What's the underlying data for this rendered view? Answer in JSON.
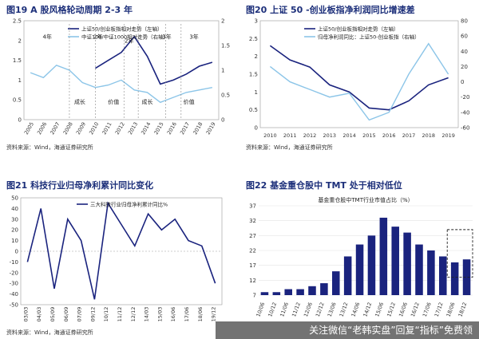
{
  "panels": {
    "p1": {
      "title": "图19 A 股风格轮动周期 2-3 年",
      "source": "资料来源：Wind，海通证券研究所"
    },
    "p2": {
      "title": "图20 上证 50 -创业板指净利润同比增速差",
      "source": "资料来源：Wind，海通证券研究所"
    },
    "p3": {
      "title": "图21 科技行业归母净利累计同比变化",
      "source": "资料来源：Wind，海通证券研究所"
    },
    "p4": {
      "title": "图22 基金重仓股中 TMT 处于相对低位",
      "source": ""
    }
  },
  "watermark": "关注微信“老韩实盘”回复“指标”免费领",
  "chart_data": [
    {
      "type": "line",
      "x": [
        "2005",
        "2006",
        "2007",
        "2008",
        "2009",
        "2010",
        "2011",
        "2012",
        "2013",
        "2014",
        "2015",
        "2016",
        "2017",
        "2018",
        "2019"
      ],
      "ylim_left": [
        0,
        2.5
      ],
      "ylim_right": [
        0,
        2.0
      ],
      "left_ticks": [
        "0",
        "0.5",
        "1",
        "1.5",
        "2",
        "2.5"
      ],
      "right_ticks": [
        "0",
        "0.5",
        "1",
        "1.5",
        "2"
      ],
      "series": [
        {
          "name": "上证50/创业板指相对走势（左轴）",
          "color": "#1a237e",
          "axis": "left",
          "values": [
            0,
            0,
            0,
            0,
            0,
            1.3,
            1.5,
            1.7,
            2.1,
            1.6,
            0.9,
            1.0,
            1.15,
            1.35,
            1.45
          ]
        },
        {
          "name": "中证100/中证1000相对走势（右轴）",
          "color": "#8cc5e8",
          "axis": "right",
          "values": [
            0.95,
            0.85,
            1.1,
            1.0,
            0.75,
            0.65,
            0.7,
            0.8,
            0.6,
            0.55,
            0.35,
            0.45,
            0.55,
            0.6,
            0.65
          ]
        }
      ],
      "annotations": [
        "4年",
        "2年",
        "2年",
        "3年",
        "3年",
        "成长",
        "价值",
        "成长",
        "价值"
      ]
    },
    {
      "type": "line",
      "x": [
        "2010",
        "2011",
        "2012",
        "2013",
        "2014",
        "2015",
        "2016",
        "2017",
        "2018",
        "2019"
      ],
      "ylim_left": [
        0,
        3
      ],
      "ylim_right": [
        -60,
        80
      ],
      "left_ticks": [
        "0",
        "0.5",
        "1",
        "1.5",
        "2",
        "2.5",
        "3"
      ],
      "right_ticks": [
        "-60",
        "-40",
        "-20",
        "0",
        "20",
        "40",
        "60",
        "80"
      ],
      "series": [
        {
          "name": "上证50/创业板指相对走势（左轴）",
          "color": "#1a237e",
          "axis": "left",
          "values": [
            2.3,
            1.9,
            1.7,
            1.2,
            1.0,
            0.55,
            0.5,
            0.75,
            1.2,
            1.4
          ]
        },
        {
          "name": "归母净利润同比：上证50-创业板指（右轴）",
          "color": "#8cc5e8",
          "axis": "right",
          "values": [
            20,
            0,
            -10,
            -20,
            -15,
            -50,
            -40,
            10,
            50,
            10
          ]
        }
      ]
    },
    {
      "type": "line",
      "x": [
        "03/03",
        "04/03",
        "05/09",
        "06/09",
        "07/09",
        "09/12",
        "10/12",
        "11/12",
        "12/12",
        "14/03",
        "15/03",
        "16/06",
        "17/06",
        "18/06",
        "19/12"
      ],
      "ylim": [
        -50,
        50
      ],
      "y_ticks": [
        "-50",
        "-40",
        "-30",
        "-20",
        "-10",
        "0",
        "10",
        "20",
        "30",
        "40",
        "50"
      ],
      "series": [
        {
          "name": "三大科技行业归母净利累计同比%",
          "color": "#1a237e",
          "values": [
            -10,
            40,
            -35,
            30,
            10,
            -45,
            45,
            25,
            5,
            35,
            20,
            30,
            10,
            5,
            -30
          ]
        }
      ]
    },
    {
      "type": "bar",
      "series_label": "基金重仓股中TMT行业市值占比（%）",
      "categories": [
        "10/06",
        "10/12",
        "11/06",
        "11/12",
        "12/06",
        "12/12",
        "13/06",
        "13/12",
        "14/06",
        "14/12",
        "15/06",
        "15/12",
        "16/06",
        "16/12",
        "17/06",
        "17/12",
        "18/06",
        "18/12"
      ],
      "values": [
        8,
        8,
        9,
        9,
        10,
        11,
        15,
        20,
        24,
        27,
        33,
        30,
        28,
        24,
        22,
        20,
        18,
        19
      ],
      "ylim": [
        7,
        37
      ],
      "y_ticks": [
        "7",
        "12",
        "17",
        "22",
        "27",
        "32",
        "37"
      ],
      "highlight": "18/06-18/12"
    }
  ]
}
